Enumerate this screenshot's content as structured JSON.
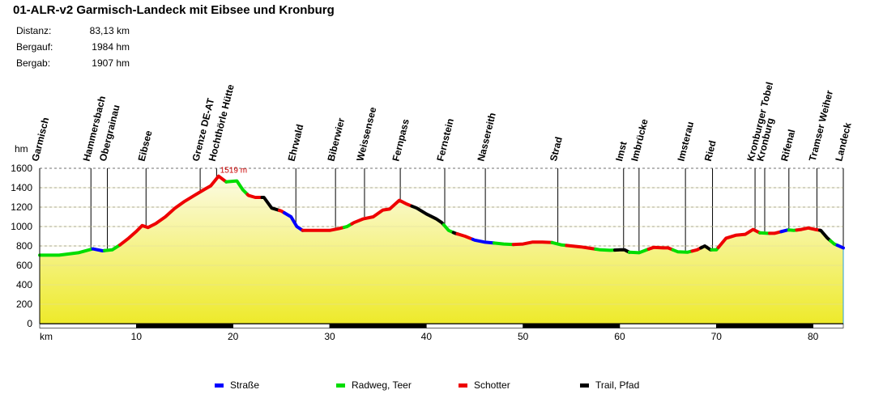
{
  "title": "01-ALR-v2 Garmisch-Landeck mit Eibsee und Kronburg",
  "stats": [
    {
      "label": "Distanz:",
      "value": "83,13 km"
    },
    {
      "label": "Bergauf:",
      "value": "1984 hm"
    },
    {
      "label": "Bergab:",
      "value": "1907 hm"
    }
  ],
  "colors": {
    "strasse": "#0000ff",
    "radweg": "#00dd00",
    "schotter": "#ee0000",
    "trail": "#000000",
    "fill_top": "#fcfbe4",
    "fill_bottom": "#eeea2a",
    "axis": "#000000",
    "max_label": "#cc0000"
  },
  "legend": [
    {
      "key": "strasse",
      "label": "Straße"
    },
    {
      "key": "radweg",
      "label": "Radweg, Teer"
    },
    {
      "key": "schotter",
      "label": "Schotter"
    },
    {
      "key": "trail",
      "label": "Trail, Pfad"
    }
  ],
  "chart_data": {
    "type": "area",
    "title": "01-ALR-v2 Garmisch-Landeck mit Eibsee und Kronburg",
    "xlabel": "km",
    "ylabel": "hm",
    "xlim": [
      0,
      83.13
    ],
    "ylim": [
      0,
      1600
    ],
    "x_ticks": [
      10,
      20,
      30,
      40,
      50,
      60,
      70,
      80
    ],
    "y_ticks": [
      0,
      200,
      400,
      600,
      800,
      1000,
      1200,
      1400,
      1600
    ],
    "max_label": "1519 m",
    "max_point": {
      "km": 18.5,
      "hm": 1519
    },
    "profile": [
      [
        0,
        705
      ],
      [
        2,
        705
      ],
      [
        4,
        730
      ],
      [
        5.5,
        770
      ],
      [
        6.5,
        750
      ],
      [
        7.5,
        760
      ],
      [
        8.3,
        810
      ],
      [
        9.2,
        880
      ],
      [
        10,
        950
      ],
      [
        10.6,
        1010
      ],
      [
        11.2,
        990
      ],
      [
        12,
        1030
      ],
      [
        13,
        1100
      ],
      [
        14,
        1190
      ],
      [
        15,
        1260
      ],
      [
        16,
        1320
      ],
      [
        17,
        1380
      ],
      [
        17.7,
        1420
      ],
      [
        18.5,
        1519
      ],
      [
        19.3,
        1460
      ],
      [
        20.4,
        1470
      ],
      [
        21,
        1380
      ],
      [
        21.6,
        1320
      ],
      [
        22.3,
        1300
      ],
      [
        23.2,
        1300
      ],
      [
        24,
        1190
      ],
      [
        25,
        1160
      ],
      [
        26,
        1100
      ],
      [
        26.6,
        1000
      ],
      [
        27.2,
        960
      ],
      [
        28,
        960
      ],
      [
        30,
        960
      ],
      [
        31,
        980
      ],
      [
        31.8,
        1000
      ],
      [
        32.5,
        1040
      ],
      [
        33.5,
        1080
      ],
      [
        34.5,
        1100
      ],
      [
        35.5,
        1170
      ],
      [
        36.2,
        1180
      ],
      [
        37.2,
        1270
      ],
      [
        38,
        1230
      ],
      [
        39,
        1190
      ],
      [
        40,
        1130
      ],
      [
        41,
        1080
      ],
      [
        41.6,
        1040
      ],
      [
        42.3,
        960
      ],
      [
        43,
        930
      ],
      [
        44,
        900
      ],
      [
        45,
        860
      ],
      [
        46,
        840
      ],
      [
        47,
        830
      ],
      [
        48,
        820
      ],
      [
        49,
        815
      ],
      [
        50,
        820
      ],
      [
        51,
        840
      ],
      [
        52,
        840
      ],
      [
        53,
        835
      ],
      [
        54,
        810
      ],
      [
        55,
        800
      ],
      [
        56,
        790
      ],
      [
        57,
        775
      ],
      [
        58,
        760
      ],
      [
        59,
        755
      ],
      [
        60,
        760
      ],
      [
        60.5,
        760
      ],
      [
        61,
        735
      ],
      [
        62,
        730
      ],
      [
        62.8,
        760
      ],
      [
        63.5,
        785
      ],
      [
        64.5,
        780
      ],
      [
        65,
        780
      ],
      [
        66,
        740
      ],
      [
        67,
        735
      ],
      [
        68,
        760
      ],
      [
        68.8,
        800
      ],
      [
        69.4,
        760
      ],
      [
        70,
        760
      ],
      [
        71,
        880
      ],
      [
        72,
        910
      ],
      [
        73,
        920
      ],
      [
        73.8,
        970
      ],
      [
        74.5,
        935
      ],
      [
        75.3,
        930
      ],
      [
        76,
        930
      ],
      [
        76.8,
        950
      ],
      [
        77.4,
        965
      ],
      [
        78,
        960
      ],
      [
        78.8,
        970
      ],
      [
        79.5,
        985
      ],
      [
        80.2,
        970
      ],
      [
        80.8,
        960
      ],
      [
        81.5,
        880
      ],
      [
        82.2,
        820
      ],
      [
        83.13,
        780
      ]
    ],
    "segments": [
      {
        "type": "radweg",
        "from": 0,
        "to": 5.5
      },
      {
        "type": "strasse",
        "from": 5.5,
        "to": 6.7
      },
      {
        "type": "radweg",
        "from": 6.7,
        "to": 8.3
      },
      {
        "type": "schotter",
        "from": 8.3,
        "to": 19.3
      },
      {
        "type": "radweg",
        "from": 19.3,
        "to": 21.5
      },
      {
        "type": "schotter",
        "from": 21.5,
        "to": 23.0
      },
      {
        "type": "trail",
        "from": 23.0,
        "to": 24.8
      },
      {
        "type": "schotter",
        "from": 24.8,
        "to": 25.3
      },
      {
        "type": "strasse",
        "from": 25.3,
        "to": 27.2
      },
      {
        "type": "schotter",
        "from": 27.2,
        "to": 31.5
      },
      {
        "type": "radweg",
        "from": 31.5,
        "to": 32.3
      },
      {
        "type": "schotter",
        "from": 32.3,
        "to": 38.5
      },
      {
        "type": "trail",
        "from": 38.5,
        "to": 41.8
      },
      {
        "type": "radweg",
        "from": 41.8,
        "to": 42.8
      },
      {
        "type": "trail",
        "from": 42.8,
        "to": 43.2
      },
      {
        "type": "schotter",
        "from": 43.2,
        "to": 44.8
      },
      {
        "type": "strasse",
        "from": 44.8,
        "to": 47.0
      },
      {
        "type": "radweg",
        "from": 47.0,
        "to": 49.0
      },
      {
        "type": "schotter",
        "from": 49.0,
        "to": 53.0
      },
      {
        "type": "radweg",
        "from": 53.0,
        "to": 54.5
      },
      {
        "type": "schotter",
        "from": 54.5,
        "to": 57.5
      },
      {
        "type": "radweg",
        "from": 57.5,
        "to": 59.5
      },
      {
        "type": "trail",
        "from": 59.5,
        "to": 61.0
      },
      {
        "type": "radweg",
        "from": 61.0,
        "to": 63.0
      },
      {
        "type": "schotter",
        "from": 63.0,
        "to": 65.5
      },
      {
        "type": "radweg",
        "from": 65.5,
        "to": 67.5
      },
      {
        "type": "schotter",
        "from": 67.5,
        "to": 68.4
      },
      {
        "type": "trail",
        "from": 68.4,
        "to": 69.5
      },
      {
        "type": "radweg",
        "from": 69.5,
        "to": 70.2
      },
      {
        "type": "schotter",
        "from": 70.2,
        "to": 74.5
      },
      {
        "type": "radweg",
        "from": 74.5,
        "to": 75.5
      },
      {
        "type": "schotter",
        "from": 75.5,
        "to": 76.7
      },
      {
        "type": "strasse",
        "from": 76.7,
        "to": 77.5
      },
      {
        "type": "radweg",
        "from": 77.5,
        "to": 78.3
      },
      {
        "type": "schotter",
        "from": 78.3,
        "to": 80.7
      },
      {
        "type": "trail",
        "from": 80.7,
        "to": 81.8
      },
      {
        "type": "radweg",
        "from": 81.8,
        "to": 82.5
      },
      {
        "type": "strasse",
        "from": 82.5,
        "to": 83.13
      }
    ],
    "waypoints": [
      {
        "name": "Garmisch",
        "km": 0
      },
      {
        "name": "Hammersbach",
        "km": 5.3
      },
      {
        "name": "Obergrainau",
        "km": 7.0
      },
      {
        "name": "Eibsee",
        "km": 11.0
      },
      {
        "name": "Grenze DE-AT",
        "km": 16.6
      },
      {
        "name": "Hochthörle Hütte",
        "km": 18.3
      },
      {
        "name": "Ehrwald",
        "km": 26.5
      },
      {
        "name": "Biberwier",
        "km": 30.6
      },
      {
        "name": "Weissensee",
        "km": 33.6
      },
      {
        "name": "Fernpass",
        "km": 37.3
      },
      {
        "name": "Fernstein",
        "km": 41.9
      },
      {
        "name": "Nassereith",
        "km": 46.1
      },
      {
        "name": "Strad",
        "km": 53.6
      },
      {
        "name": "Imst",
        "km": 60.4
      },
      {
        "name": "Imbrücke",
        "km": 62.0
      },
      {
        "name": "Imsterau",
        "km": 66.8
      },
      {
        "name": "Ried",
        "km": 69.6
      },
      {
        "name": "Kronburger Tobel",
        "km": 74.0
      },
      {
        "name": "Kronburg",
        "km": 75.0
      },
      {
        "name": "Rifenal",
        "km": 77.5
      },
      {
        "name": "Tramser Weiher",
        "km": 80.4
      },
      {
        "name": "Landeck",
        "km": 83.13
      }
    ]
  }
}
